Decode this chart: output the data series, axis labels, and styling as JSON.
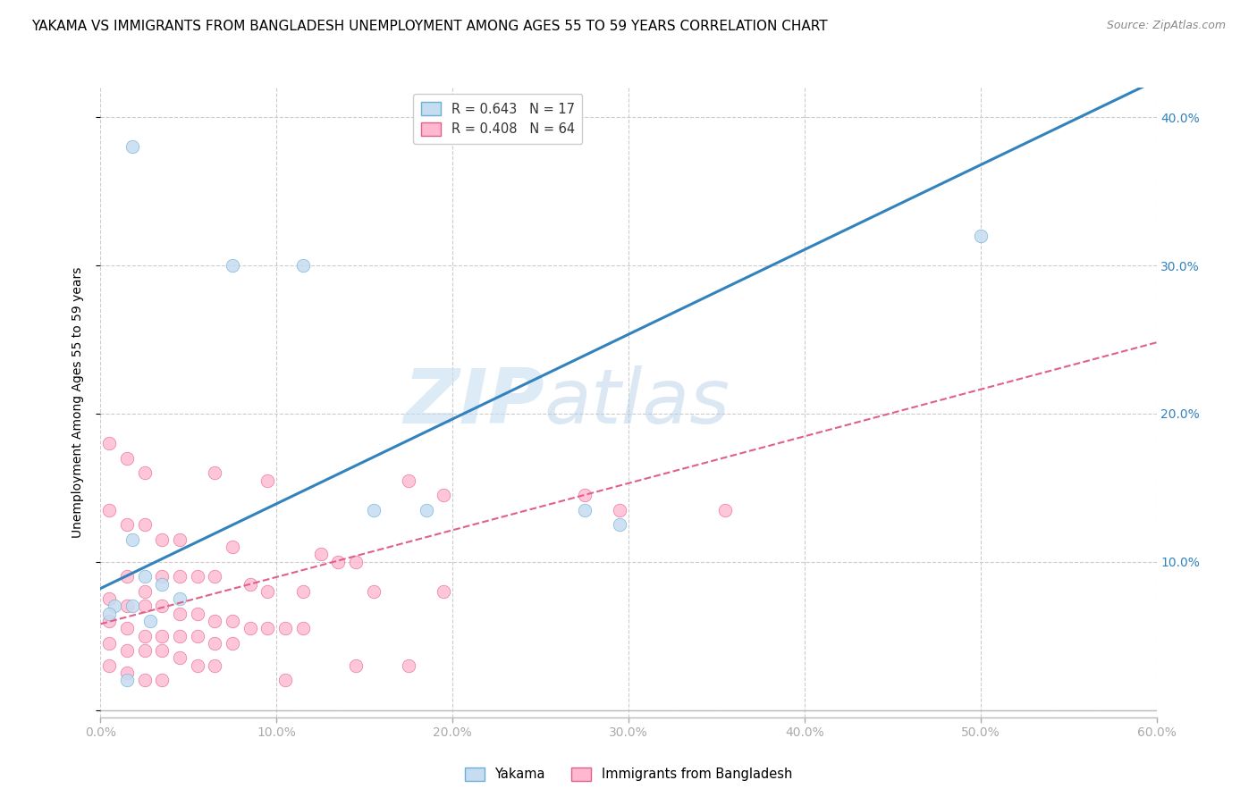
{
  "title": "YAKAMA VS IMMIGRANTS FROM BANGLADESH UNEMPLOYMENT AMONG AGES 55 TO 59 YEARS CORRELATION CHART",
  "source": "Source: ZipAtlas.com",
  "ylabel": "Unemployment Among Ages 55 to 59 years",
  "xlim": [
    0.0,
    0.6
  ],
  "ylim": [
    -0.005,
    0.42
  ],
  "xticks": [
    0.0,
    0.1,
    0.2,
    0.3,
    0.4,
    0.5,
    0.6
  ],
  "yticks": [
    0.0,
    0.1,
    0.2,
    0.3,
    0.4
  ],
  "xtick_labels": [
    "0.0%",
    "10.0%",
    "20.0%",
    "30.0%",
    "40.0%",
    "50.0%",
    "60.0%"
  ],
  "ytick_labels_right": [
    "",
    "10.0%",
    "20.0%",
    "30.0%",
    "40.0%"
  ],
  "legend_entries": [
    {
      "label": "R = 0.643   N = 17",
      "color": "#6baed6"
    },
    {
      "label": "R = 0.408   N = 64",
      "color": "#fb6a9a"
    }
  ],
  "yakama_scatter": [
    [
      0.018,
      0.38
    ],
    [
      0.5,
      0.32
    ],
    [
      0.075,
      0.3
    ],
    [
      0.115,
      0.3
    ],
    [
      0.155,
      0.135
    ],
    [
      0.185,
      0.135
    ],
    [
      0.275,
      0.135
    ],
    [
      0.295,
      0.125
    ],
    [
      0.018,
      0.115
    ],
    [
      0.025,
      0.09
    ],
    [
      0.035,
      0.085
    ],
    [
      0.045,
      0.075
    ],
    [
      0.008,
      0.07
    ],
    [
      0.018,
      0.07
    ],
    [
      0.028,
      0.06
    ],
    [
      0.015,
      0.02
    ],
    [
      0.005,
      0.065
    ]
  ],
  "bangladesh_scatter": [
    [
      0.005,
      0.18
    ],
    [
      0.015,
      0.17
    ],
    [
      0.025,
      0.16
    ],
    [
      0.065,
      0.16
    ],
    [
      0.095,
      0.155
    ],
    [
      0.175,
      0.155
    ],
    [
      0.195,
      0.145
    ],
    [
      0.275,
      0.145
    ],
    [
      0.295,
      0.135
    ],
    [
      0.355,
      0.135
    ],
    [
      0.005,
      0.135
    ],
    [
      0.015,
      0.125
    ],
    [
      0.025,
      0.125
    ],
    [
      0.035,
      0.115
    ],
    [
      0.045,
      0.115
    ],
    [
      0.075,
      0.11
    ],
    [
      0.125,
      0.105
    ],
    [
      0.135,
      0.1
    ],
    [
      0.145,
      0.1
    ],
    [
      0.015,
      0.09
    ],
    [
      0.035,
      0.09
    ],
    [
      0.045,
      0.09
    ],
    [
      0.055,
      0.09
    ],
    [
      0.065,
      0.09
    ],
    [
      0.085,
      0.085
    ],
    [
      0.095,
      0.08
    ],
    [
      0.115,
      0.08
    ],
    [
      0.155,
      0.08
    ],
    [
      0.025,
      0.08
    ],
    [
      0.005,
      0.075
    ],
    [
      0.015,
      0.07
    ],
    [
      0.025,
      0.07
    ],
    [
      0.035,
      0.07
    ],
    [
      0.045,
      0.065
    ],
    [
      0.055,
      0.065
    ],
    [
      0.065,
      0.06
    ],
    [
      0.075,
      0.06
    ],
    [
      0.085,
      0.055
    ],
    [
      0.095,
      0.055
    ],
    [
      0.105,
      0.055
    ],
    [
      0.115,
      0.055
    ],
    [
      0.005,
      0.06
    ],
    [
      0.015,
      0.055
    ],
    [
      0.025,
      0.05
    ],
    [
      0.035,
      0.05
    ],
    [
      0.045,
      0.05
    ],
    [
      0.055,
      0.05
    ],
    [
      0.065,
      0.045
    ],
    [
      0.075,
      0.045
    ],
    [
      0.005,
      0.045
    ],
    [
      0.015,
      0.04
    ],
    [
      0.025,
      0.04
    ],
    [
      0.035,
      0.04
    ],
    [
      0.045,
      0.035
    ],
    [
      0.055,
      0.03
    ],
    [
      0.065,
      0.03
    ],
    [
      0.195,
      0.08
    ],
    [
      0.145,
      0.03
    ],
    [
      0.105,
      0.02
    ],
    [
      0.025,
      0.02
    ],
    [
      0.175,
      0.03
    ],
    [
      0.005,
      0.03
    ],
    [
      0.015,
      0.025
    ],
    [
      0.035,
      0.02
    ]
  ],
  "yakama_line": {
    "x0": 0.0,
    "y0": 0.082,
    "x1": 0.6,
    "y1": 0.425
  },
  "bangladesh_line": {
    "x0": 0.0,
    "y0": 0.058,
    "x1": 0.6,
    "y1": 0.248
  },
  "yakama_line_color": "#3182bd",
  "bangladesh_line_color": "#e0608a",
  "background_color": "#ffffff",
  "grid_color": "#cccccc",
  "text_color_blue": "#3182bd",
  "watermark_zip": "ZIP",
  "watermark_atlas": "atlas",
  "title_fontsize": 11,
  "axis_label_fontsize": 10,
  "tick_fontsize": 10,
  "source_fontsize": 9
}
